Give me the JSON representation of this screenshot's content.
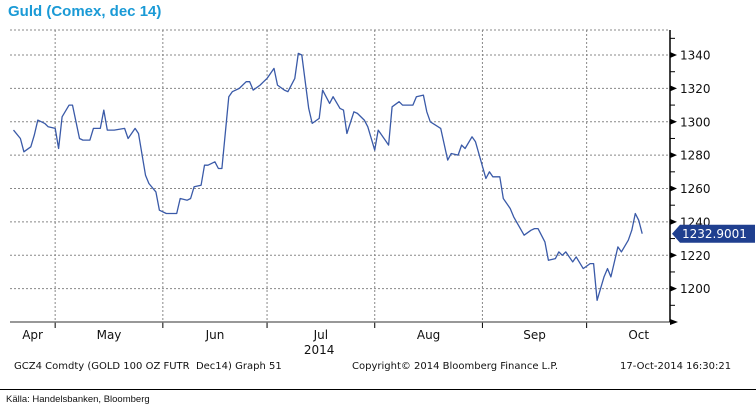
{
  "chart_data": {
    "type": "line",
    "title": "Guld (Comex, dec 14)",
    "xlabel": "2014",
    "ylabel": "",
    "x_tick_labels": [
      "Apr",
      "May",
      "Jun",
      "Jul",
      "Aug",
      "Sep",
      "Oct"
    ],
    "y_tick_labels": [
      "1200",
      "1220",
      "1240",
      "1260",
      "1280",
      "1300",
      "1320",
      "1340"
    ],
    "ylim": [
      1180,
      1355
    ],
    "xlim": [
      "2014-04-18",
      "2014-10-25"
    ],
    "grid": true,
    "y_axis_position": "right",
    "line_color": "#3a5aa8",
    "last_value_label": "1232.9001",
    "last_value_color": "#1f3f8f",
    "series": [
      {
        "x": [
          "2014-04-19",
          "2014-04-21",
          "2014-04-22",
          "2014-04-24",
          "2014-04-25",
          "2014-04-26",
          "2014-04-28",
          "2014-04-29",
          "2014-05-01",
          "2014-05-02",
          "2014-05-03",
          "2014-05-05",
          "2014-05-06",
          "2014-05-08",
          "2014-05-09",
          "2014-05-11",
          "2014-05-12",
          "2014-05-14",
          "2014-05-15",
          "2014-05-16",
          "2014-05-18",
          "2014-05-21",
          "2014-05-22",
          "2014-05-24",
          "2014-05-25",
          "2014-05-27",
          "2014-05-28",
          "2014-05-30",
          "2014-05-31",
          "2014-06-02",
          "2014-06-05",
          "2014-06-06",
          "2014-06-08",
          "2014-06-09",
          "2014-06-10",
          "2014-06-12",
          "2014-06-13",
          "2014-06-14",
          "2014-06-16",
          "2014-06-17",
          "2014-06-18",
          "2014-06-20",
          "2014-06-21",
          "2014-06-23",
          "2014-06-25",
          "2014-06-26",
          "2014-06-27",
          "2014-06-29",
          "2014-06-30",
          "2014-07-01",
          "2014-07-03",
          "2014-07-04",
          "2014-07-06",
          "2014-07-07",
          "2014-07-09",
          "2014-07-10",
          "2014-07-11",
          "2014-07-13",
          "2014-07-14",
          "2014-07-16",
          "2014-07-17",
          "2014-07-19",
          "2014-07-20",
          "2014-07-22",
          "2014-07-23",
          "2014-07-24",
          "2014-07-26",
          "2014-07-27",
          "2014-07-29",
          "2014-07-30",
          "2014-08-01",
          "2014-08-02",
          "2014-08-04",
          "2014-08-05",
          "2014-08-06",
          "2014-08-08",
          "2014-08-09",
          "2014-08-12",
          "2014-08-13",
          "2014-08-15",
          "2014-08-16",
          "2014-08-17",
          "2014-08-20",
          "2014-08-22",
          "2014-08-23",
          "2014-08-25",
          "2014-08-26",
          "2014-08-27",
          "2014-08-29",
          "2014-08-30",
          "2014-09-02",
          "2014-09-03",
          "2014-09-04",
          "2014-09-06",
          "2014-09-07",
          "2014-09-09",
          "2014-09-10",
          "2014-09-13",
          "2014-09-15",
          "2014-09-16",
          "2014-09-17",
          "2014-09-19",
          "2014-09-20",
          "2014-09-22",
          "2014-09-23",
          "2014-09-24",
          "2014-09-25",
          "2014-09-27",
          "2014-09-28",
          "2014-09-30",
          "2014-10-02",
          "2014-10-03",
          "2014-10-04",
          "2014-10-06",
          "2014-10-07",
          "2014-10-08",
          "2014-10-10",
          "2014-10-11",
          "2014-10-13",
          "2014-10-14",
          "2014-10-15",
          "2014-10-16",
          "2014-10-17"
        ],
        "values": [
          1295,
          1290,
          1282,
          1285,
          1292,
          1301,
          1299,
          1297,
          1296,
          1284,
          1303,
          1310,
          1310,
          1290,
          1289,
          1289,
          1296,
          1296,
          1307,
          1295,
          1295,
          1296,
          1290,
          1296,
          1293,
          1268,
          1263,
          1258,
          1247,
          1245,
          1245,
          1254,
          1253,
          1254,
          1261,
          1262,
          1274,
          1274,
          1276,
          1272,
          1272,
          1315,
          1318,
          1320,
          1324,
          1324,
          1319,
          1322,
          1324,
          1326,
          1332,
          1322,
          1319,
          1318,
          1326,
          1341,
          1340,
          1308,
          1299,
          1302,
          1319,
          1311,
          1315,
          1308,
          1307,
          1293,
          1306,
          1305,
          1301,
          1297,
          1283,
          1295,
          1289,
          1286,
          1309,
          1312,
          1310,
          1310,
          1315,
          1316,
          1306,
          1300,
          1296,
          1277,
          1281,
          1280,
          1286,
          1284,
          1291,
          1288,
          1266,
          1270,
          1267,
          1267,
          1254,
          1248,
          1243,
          1232,
          1235,
          1236,
          1236,
          1228,
          1217,
          1218,
          1222,
          1220,
          1222,
          1216,
          1219,
          1212,
          1215,
          1215,
          1193,
          1207,
          1212,
          1207,
          1225,
          1222,
          1229,
          1235,
          1245,
          1241,
          1232.9
        ]
      }
    ]
  },
  "footer": {
    "ticker": "GCZ4 Comdty (GOLD 100 OZ FUTR  Dec14) Graph 51",
    "copyright": "Copyright© 2014 Bloomberg Finance L.P.",
    "timestamp": "17-Oct-2014 16:30:21"
  },
  "source": "Källa: Handelsbanken, Bloomberg"
}
